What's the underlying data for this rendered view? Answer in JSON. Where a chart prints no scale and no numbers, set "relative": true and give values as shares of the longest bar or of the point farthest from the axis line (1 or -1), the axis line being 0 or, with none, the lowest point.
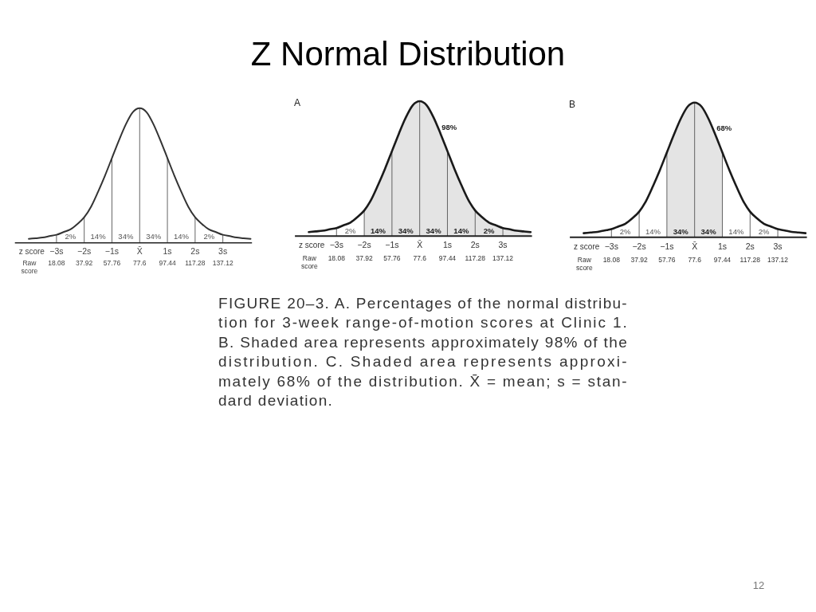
{
  "chart_data": [
    {
      "type": "other",
      "title": "Z Normal Distribution"
    },
    {
      "type": "line",
      "relative": true,
      "color": "#333333",
      "grid": "x",
      "x": [
        -4,
        -3.75,
        -3.5,
        -3.25,
        -3,
        -2.75,
        -2.5,
        -2.25,
        -2,
        -1.75,
        -1.5,
        -1.25,
        -1,
        -0.75,
        -0.5,
        -0.25,
        0,
        0.25,
        0.5,
        0.75,
        1,
        1.25,
        1.5,
        1.75,
        2,
        2.25,
        2.5,
        2.75,
        3,
        3.25,
        3.5,
        3.75,
        4
      ],
      "values": [
        0.03,
        0.035,
        0.04,
        0.05,
        0.06,
        0.08,
        0.1,
        0.14,
        0.19,
        0.27,
        0.38,
        0.5,
        0.63,
        0.76,
        0.88,
        0.97,
        1,
        0.97,
        0.88,
        0.76,
        0.63,
        0.5,
        0.38,
        0.27,
        0.19,
        0.14,
        0.1,
        0.08,
        0.06,
        0.05,
        0.04,
        0.035,
        0.03
      ],
      "xlim": [
        -4.5,
        4.05
      ],
      "xticks": [
        {
          "value": -3,
          "label": "−3s"
        },
        {
          "value": -2,
          "label": "−2s"
        },
        {
          "value": -1,
          "label": "−1s"
        },
        {
          "value": 0,
          "label": "X̄"
        },
        {
          "value": 1,
          "label": "1s"
        },
        {
          "value": 2,
          "label": "2s"
        },
        {
          "value": 3,
          "label": "3s"
        }
      ],
      "xlabel": "z score",
      "x2label": "Raw score",
      "x2lim": [
        -11.68,
        157.95
      ],
      "x2ticks": [
        18.08,
        37.92,
        57.76,
        77.6,
        97.44,
        117.28,
        137.12
      ],
      "annotations": [
        "2%",
        "14%",
        "34%",
        "34%",
        "14%",
        "2%"
      ]
    },
    {
      "type": "line",
      "title": "A",
      "relative": true,
      "color": "#1a1a1a",
      "grid": "x",
      "x": [
        -4,
        -3.75,
        -3.5,
        -3.25,
        -3,
        -2.75,
        -2.5,
        -2.25,
        -2,
        -1.75,
        -1.5,
        -1.25,
        -1,
        -0.75,
        -0.5,
        -0.25,
        0,
        0.25,
        0.5,
        0.75,
        1,
        1.25,
        1.5,
        1.75,
        2,
        2.25,
        2.5,
        2.75,
        3,
        3.25,
        3.5,
        3.75,
        4
      ],
      "values": [
        0.03,
        0.035,
        0.04,
        0.05,
        0.06,
        0.08,
        0.1,
        0.14,
        0.19,
        0.27,
        0.38,
        0.5,
        0.63,
        0.76,
        0.88,
        0.97,
        1,
        0.97,
        0.88,
        0.76,
        0.63,
        0.5,
        0.38,
        0.27,
        0.19,
        0.14,
        0.1,
        0.08,
        0.06,
        0.05,
        0.04,
        0.035,
        0.03
      ],
      "xlim": [
        -4.5,
        4.05
      ],
      "xticks": [
        {
          "value": -3,
          "label": "−3s"
        },
        {
          "value": -2,
          "label": "−2s"
        },
        {
          "value": -1,
          "label": "−1s"
        },
        {
          "value": 0,
          "label": "X̄"
        },
        {
          "value": 1,
          "label": "1s"
        },
        {
          "value": 2,
          "label": "2s"
        },
        {
          "value": 3,
          "label": "3s"
        }
      ],
      "xlabel": "z score",
      "x2label": "Raw score",
      "x2lim": [
        -11.68,
        157.95
      ],
      "x2ticks": [
        18.08,
        37.92,
        57.76,
        77.6,
        97.44,
        117.28,
        137.12
      ],
      "bands": [
        {
          "axis": "x",
          "from": -2,
          "to": 4,
          "label": "98%",
          "color": "#e4e4e4"
        }
      ],
      "annotations": [
        "2%",
        "14%",
        "34%",
        "34%",
        "14%",
        "2%"
      ]
    },
    {
      "type": "line",
      "title": "B",
      "relative": true,
      "color": "#1a1a1a",
      "grid": "x",
      "x": [
        -4,
        -3.75,
        -3.5,
        -3.25,
        -3,
        -2.75,
        -2.5,
        -2.25,
        -2,
        -1.75,
        -1.5,
        -1.25,
        -1,
        -0.75,
        -0.5,
        -0.25,
        0,
        0.25,
        0.5,
        0.75,
        1,
        1.25,
        1.5,
        1.75,
        2,
        2.25,
        2.5,
        2.75,
        3,
        3.25,
        3.5,
        3.75,
        4
      ],
      "values": [
        0.03,
        0.035,
        0.04,
        0.05,
        0.06,
        0.08,
        0.1,
        0.14,
        0.19,
        0.27,
        0.38,
        0.5,
        0.63,
        0.76,
        0.88,
        0.97,
        1,
        0.97,
        0.88,
        0.76,
        0.63,
        0.5,
        0.38,
        0.27,
        0.19,
        0.14,
        0.1,
        0.08,
        0.06,
        0.05,
        0.04,
        0.035,
        0.03
      ],
      "xlim": [
        -4.5,
        4.05
      ],
      "xticks": [
        {
          "value": -3,
          "label": "−3s"
        },
        {
          "value": -2,
          "label": "−2s"
        },
        {
          "value": -1,
          "label": "−1s"
        },
        {
          "value": 0,
          "label": "X̄"
        },
        {
          "value": 1,
          "label": "1s"
        },
        {
          "value": 2,
          "label": "2s"
        },
        {
          "value": 3,
          "label": "3s"
        }
      ],
      "xlabel": "z score",
      "x2label": "Raw score",
      "x2lim": [
        -11.68,
        157.95
      ],
      "x2ticks": [
        18.08,
        37.92,
        57.76,
        77.6,
        97.44,
        117.28,
        137.12
      ],
      "bands": [
        {
          "axis": "x",
          "from": -1,
          "to": 1,
          "label": "68%",
          "color": "#e4e4e4"
        }
      ],
      "annotations": [
        "2%",
        "14%",
        "34%",
        "34%",
        "14%",
        "2%"
      ]
    },
    {
      "type": "other",
      "annotations": [
        "FIGURE 20–3. A. Percentages of the normal distribu-\ntion for 3-week range-of-motion scores at Clinic 1.\nB. Shaded area represents approximately 98% of the\ndistribution. C. Shaded area represents approxi-\nmately 68% of the distribution. X̄ = mean; s = stan-\ndard deviation.",
        "12"
      ]
    }
  ]
}
